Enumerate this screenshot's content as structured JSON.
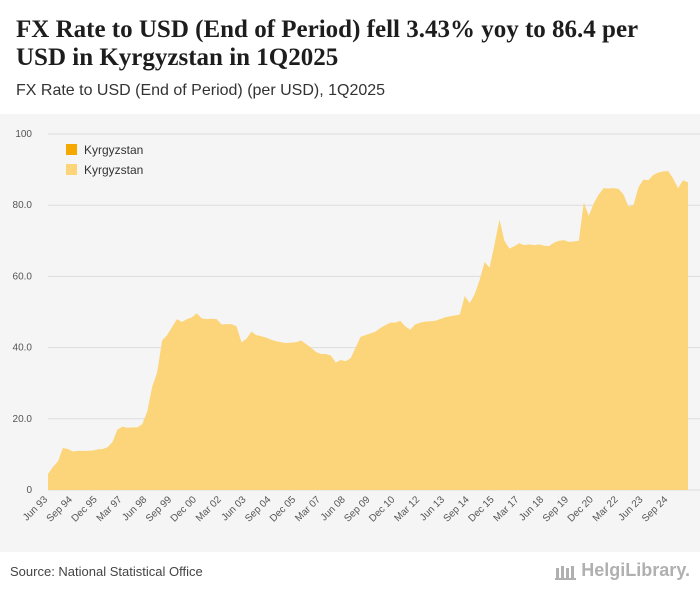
{
  "header": {
    "title": "FX Rate to USD (End of Period) fell 3.43% yoy to 86.4 per USD in Kyrgyzstan in 1Q2025",
    "subtitle": "FX Rate to USD (End of Period) (per USD), 1Q2025"
  },
  "footer": {
    "source": "Source: National Statistical Office",
    "brand": "HelgiLibrary."
  },
  "colors": {
    "legend_primary": "#f5a800",
    "area_fill": "#fcd57a",
    "grid": "#dddddd",
    "background": "#f5f5f5"
  },
  "chart_data": {
    "type": "area",
    "title": "FX Rate to USD (End of Period) (per USD), 1Q2025",
    "xlabel": "",
    "ylabel": "",
    "ylim": [
      0,
      100
    ],
    "y_ticks": [
      "0",
      "20.0",
      "40.0",
      "60.0",
      "80.0",
      "100"
    ],
    "x_tick_labels": [
      "Jun 93",
      "Sep 94",
      "Dec 95",
      "Mar 97",
      "Jun 98",
      "Sep 99",
      "Dec 00",
      "Mar 02",
      "Jun 03",
      "Sep 04",
      "Dec 05",
      "Mar 07",
      "Jun 08",
      "Sep 09",
      "Dec 10",
      "Mar 12",
      "Jun 13",
      "Sep 14",
      "Dec 15",
      "Mar 17",
      "Jun 18",
      "Sep 19",
      "Dec 20",
      "Mar 22",
      "Jun 23",
      "Sep 24"
    ],
    "x_start": 1993.25,
    "x_step": 0.25,
    "legend": [
      "Kyrgyzstan",
      "Kyrgyzstan"
    ],
    "series": [
      {
        "name": "Kyrgyzstan",
        "values": [
          4.5,
          6.5,
          8.0,
          11.8,
          11.5,
          10.8,
          11.0,
          11.0,
          11.0,
          11.1,
          11.4,
          11.5,
          12.0,
          13.5,
          17.0,
          17.8,
          17.5,
          17.6,
          17.6,
          18.5,
          22.0,
          29.0,
          33.0,
          42.0,
          43.5,
          45.8,
          48.0,
          47.2,
          48.0,
          48.5,
          49.6,
          48.2,
          48.0,
          48.1,
          48.0,
          46.5,
          46.6,
          46.6,
          46.0,
          41.5,
          42.5,
          44.5,
          43.5,
          43.2,
          42.8,
          42.2,
          41.8,
          41.5,
          41.3,
          41.4,
          41.5,
          42.0,
          41.0,
          40.0,
          38.8,
          38.2,
          38.2,
          37.8,
          35.8,
          36.5,
          36.2,
          37.0,
          40.0,
          43.0,
          43.5,
          44.0,
          44.5,
          45.5,
          46.3,
          47.0,
          47.0,
          47.5,
          46.0,
          45.0,
          46.5,
          47.0,
          47.3,
          47.4,
          47.5,
          48.0,
          48.5,
          48.8,
          49.0,
          49.3,
          54.5,
          52.5,
          55.0,
          59.0,
          64.0,
          62.5,
          69.0,
          76.0,
          70.0,
          67.8,
          68.5,
          69.3,
          68.8,
          69.0,
          68.8,
          69.0,
          68.6,
          68.5,
          69.5,
          70.0,
          70.2,
          69.7,
          69.8,
          70.0,
          80.8,
          77.0,
          80.5,
          83.0,
          84.8,
          84.7,
          84.8,
          84.6,
          83.0,
          79.6,
          80.0,
          85.0,
          87.2,
          87.0,
          88.5,
          89.2,
          89.5,
          89.6,
          87.5,
          84.8,
          87.0,
          86.4
        ]
      }
    ]
  }
}
